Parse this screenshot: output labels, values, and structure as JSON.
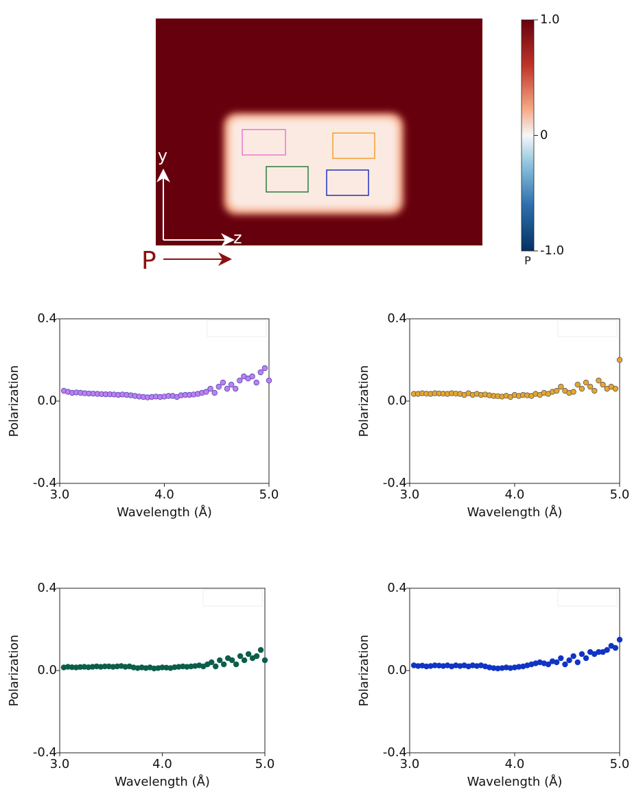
{
  "chart_data": [
    {
      "type": "heatmap",
      "clim": [
        -1,
        1
      ],
      "colorbar_ticks": [
        {
          "value": 1,
          "label": "1.0"
        },
        0,
        {
          "value": -1,
          "label": "-1.0"
        }
      ],
      "colorbar_label": "P",
      "annotations": [
        "y",
        "z",
        "P"
      ]
    },
    {
      "type": "scatter",
      "x": [
        3.04,
        3.08,
        3.12,
        3.16,
        3.2,
        3.24,
        3.28,
        3.32,
        3.36,
        3.4,
        3.44,
        3.48,
        3.52,
        3.56,
        3.6,
        3.64,
        3.68,
        3.72,
        3.76,
        3.8,
        3.84,
        3.88,
        3.92,
        3.96,
        4.0,
        4.04,
        4.08,
        4.12,
        4.16,
        4.2,
        4.24,
        4.28,
        4.32,
        4.36,
        4.4,
        4.44,
        4.48,
        4.52,
        4.56,
        4.6,
        4.64,
        4.68,
        4.72,
        4.76,
        4.8,
        4.84,
        4.88,
        4.92,
        4.96,
        5.0
      ],
      "series": [
        {
          "color": "#c07ef2",
          "edgecolor": "#4a4ab0",
          "values": [
            0.05,
            0.045,
            0.04,
            0.042,
            0.04,
            0.038,
            0.037,
            0.036,
            0.035,
            0.034,
            0.033,
            0.033,
            0.032,
            0.03,
            0.032,
            0.03,
            0.028,
            0.025,
            0.022,
            0.02,
            0.018,
            0.02,
            0.022,
            0.02,
            0.022,
            0.025,
            0.025,
            0.02,
            0.028,
            0.03,
            0.03,
            0.032,
            0.035,
            0.04,
            0.045,
            0.06,
            0.04,
            0.07,
            0.09,
            0.06,
            0.08,
            0.06,
            0.1,
            0.12,
            0.11,
            0.12,
            0.09,
            0.14,
            0.16,
            0.1
          ]
        }
      ],
      "xlim": [
        3,
        5
      ],
      "xticks": [
        {
          "value": 3,
          "label": "3.0"
        },
        {
          "value": 4,
          "label": "4.0"
        },
        {
          "value": 5,
          "label": "5.0"
        }
      ],
      "ylim": [
        -0.4,
        0.4
      ],
      "yticks": [
        {
          "value": -0.4,
          "label": "-0.4"
        },
        {
          "value": 0,
          "label": "0.0"
        },
        {
          "value": 0.4,
          "label": "0.4"
        }
      ],
      "xlabel": "Wavelength (Å)",
      "ylabel": "Polarization"
    },
    {
      "type": "scatter",
      "x": [
        3.04,
        3.08,
        3.12,
        3.16,
        3.2,
        3.24,
        3.28,
        3.32,
        3.36,
        3.4,
        3.44,
        3.48,
        3.52,
        3.56,
        3.6,
        3.64,
        3.68,
        3.72,
        3.76,
        3.8,
        3.84,
        3.88,
        3.92,
        3.96,
        4.0,
        4.04,
        4.08,
        4.12,
        4.16,
        4.2,
        4.24,
        4.28,
        4.32,
        4.36,
        4.4,
        4.44,
        4.48,
        4.52,
        4.56,
        4.6,
        4.64,
        4.68,
        4.72,
        4.76,
        4.8,
        4.84,
        4.88,
        4.92,
        4.96,
        5.0
      ],
      "series": [
        {
          "color": "#e8a62a",
          "edgecolor": "#5a5a5a",
          "values": [
            0.035,
            0.035,
            0.038,
            0.036,
            0.035,
            0.038,
            0.037,
            0.036,
            0.035,
            0.038,
            0.036,
            0.035,
            0.03,
            0.038,
            0.03,
            0.035,
            0.03,
            0.032,
            0.028,
            0.025,
            0.024,
            0.022,
            0.026,
            0.02,
            0.03,
            0.025,
            0.03,
            0.028,
            0.025,
            0.035,
            0.03,
            0.04,
            0.035,
            0.045,
            0.05,
            0.07,
            0.05,
            0.04,
            0.045,
            0.08,
            0.06,
            0.09,
            0.07,
            0.05,
            0.1,
            0.08,
            0.06,
            0.07,
            0.06,
            0.2
          ]
        }
      ],
      "xlim": [
        3,
        5
      ],
      "xticks": [
        {
          "value": 3,
          "label": "3.0"
        },
        {
          "value": 4,
          "label": "4.0"
        },
        {
          "value": 5,
          "label": "5.0"
        }
      ],
      "ylim": [
        -0.4,
        0.4
      ],
      "yticks": [
        {
          "value": -0.4,
          "label": "-0.4"
        },
        {
          "value": 0,
          "label": "0.0"
        },
        {
          "value": 0.4,
          "label": "0.4"
        }
      ],
      "xlabel": "Wavelength (Å)",
      "ylabel": "Polarization"
    },
    {
      "type": "scatter",
      "x": [
        3.04,
        3.08,
        3.12,
        3.16,
        3.2,
        3.24,
        3.28,
        3.32,
        3.36,
        3.4,
        3.44,
        3.48,
        3.52,
        3.56,
        3.6,
        3.64,
        3.68,
        3.72,
        3.76,
        3.8,
        3.84,
        3.88,
        3.92,
        3.96,
        4.0,
        4.04,
        4.08,
        4.12,
        4.16,
        4.2,
        4.24,
        4.28,
        4.32,
        4.36,
        4.4,
        4.44,
        4.48,
        4.52,
        4.56,
        4.6,
        4.64,
        4.68,
        4.72,
        4.76,
        4.8,
        4.84,
        4.88,
        4.92,
        4.96,
        5.0
      ],
      "series": [
        {
          "color": "#0b5e4a",
          "edgecolor": "#0b5e4a",
          "values": [
            0.015,
            0.018,
            0.016,
            0.015,
            0.017,
            0.018,
            0.016,
            0.018,
            0.02,
            0.018,
            0.02,
            0.02,
            0.018,
            0.02,
            0.022,
            0.018,
            0.02,
            0.015,
            0.012,
            0.015,
            0.012,
            0.015,
            0.01,
            0.012,
            0.015,
            0.014,
            0.012,
            0.016,
            0.018,
            0.02,
            0.018,
            0.02,
            0.022,
            0.025,
            0.02,
            0.03,
            0.04,
            0.02,
            0.05,
            0.03,
            0.06,
            0.05,
            0.03,
            0.07,
            0.05,
            0.08,
            0.06,
            0.07,
            0.1,
            0.05
          ]
        }
      ],
      "xlim": [
        3,
        5
      ],
      "xticks": [
        {
          "value": 3,
          "label": "3.0"
        },
        {
          "value": 4,
          "label": "4.0"
        },
        {
          "value": 5,
          "label": "5.0"
        }
      ],
      "ylim": [
        -0.4,
        0.4
      ],
      "yticks": [
        {
          "value": -0.4,
          "label": "-0.4"
        },
        {
          "value": 0,
          "label": "0.0"
        },
        {
          "value": 0.4,
          "label": "0.4"
        }
      ],
      "xlabel": "Wavelength (Å)",
      "ylabel": "Polarization"
    },
    {
      "type": "scatter",
      "x": [
        3.04,
        3.08,
        3.12,
        3.16,
        3.2,
        3.24,
        3.28,
        3.32,
        3.36,
        3.4,
        3.44,
        3.48,
        3.52,
        3.56,
        3.6,
        3.64,
        3.68,
        3.72,
        3.76,
        3.8,
        3.84,
        3.88,
        3.92,
        3.96,
        4.0,
        4.04,
        4.08,
        4.12,
        4.16,
        4.2,
        4.24,
        4.28,
        4.32,
        4.36,
        4.4,
        4.44,
        4.48,
        4.52,
        4.56,
        4.6,
        4.64,
        4.68,
        4.72,
        4.76,
        4.8,
        4.84,
        4.88,
        4.92,
        4.96,
        5.0
      ],
      "series": [
        {
          "color": "#1034c4",
          "edgecolor": "#1034c4",
          "values": [
            0.025,
            0.022,
            0.024,
            0.02,
            0.022,
            0.025,
            0.024,
            0.022,
            0.025,
            0.02,
            0.025,
            0.022,
            0.025,
            0.02,
            0.025,
            0.022,
            0.025,
            0.02,
            0.015,
            0.012,
            0.01,
            0.012,
            0.015,
            0.012,
            0.015,
            0.018,
            0.02,
            0.025,
            0.03,
            0.035,
            0.04,
            0.035,
            0.03,
            0.045,
            0.04,
            0.06,
            0.03,
            0.05,
            0.07,
            0.04,
            0.08,
            0.06,
            0.09,
            0.08,
            0.09,
            0.09,
            0.1,
            0.12,
            0.11,
            0.15
          ]
        }
      ],
      "xlim": [
        3,
        5
      ],
      "xticks": [
        {
          "value": 3,
          "label": "3.0"
        },
        {
          "value": 4,
          "label": "4.0"
        },
        {
          "value": 5,
          "label": "5.0"
        }
      ],
      "ylim": [
        -0.4,
        0.4
      ],
      "yticks": [
        {
          "value": -0.4,
          "label": "-0.4"
        },
        {
          "value": 0,
          "label": "0.0"
        },
        {
          "value": 0.4,
          "label": "0.4"
        }
      ],
      "xlabel": "Wavelength (Å)",
      "ylabel": "Polarization"
    }
  ]
}
